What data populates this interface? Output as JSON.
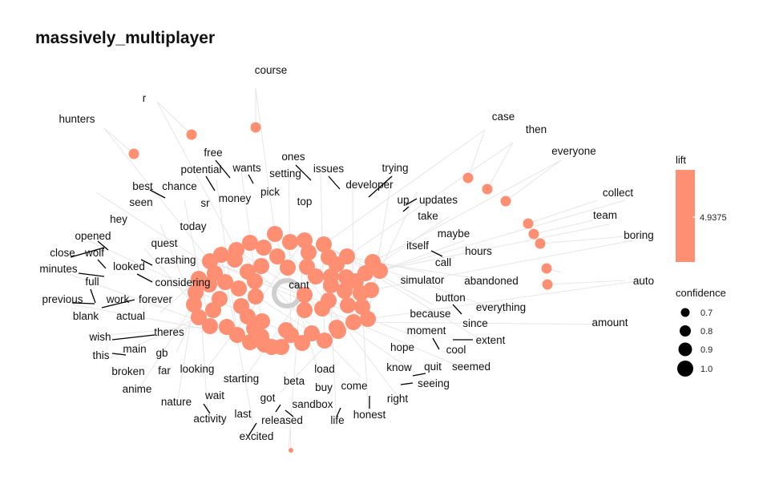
{
  "title": "massively_multiplayer",
  "colors": {
    "node": "#FF8F73",
    "edge": "#E6E6E6",
    "loop": "#CFCFCF"
  },
  "legend": {
    "lift_title": "lift",
    "lift_value": "4.9375",
    "confidence_title": "confidence",
    "confidence_values": [
      "0.7",
      "0.8",
      "0.9",
      "1.0"
    ]
  },
  "center_word": "cant",
  "words": [
    "course",
    "r",
    "hunters",
    "case",
    "then",
    "everyone",
    "free",
    "ones",
    "wants",
    "issues",
    "trying",
    "potential",
    "setting",
    "developer",
    "best",
    "chance",
    "money",
    "pick",
    "collect",
    "seen",
    "sr",
    "top",
    "up",
    "updates",
    "team",
    "hey",
    "take",
    "today",
    "boring",
    "opened",
    "maybe",
    "quest",
    "itself",
    "hours",
    "close",
    "wolf",
    "crashing",
    "call",
    "minutes",
    "looked",
    "simulator",
    "abandoned",
    "auto",
    "full",
    "considering",
    "button",
    "previous",
    "work",
    "forever",
    "everything",
    "blank",
    "actual",
    "because",
    "since",
    "amount",
    "moment",
    "wish",
    "theres",
    "extent",
    "main",
    "cool",
    "this",
    "gb",
    "hope",
    "know",
    "quit",
    "seemed",
    "broken",
    "far",
    "looking",
    "load",
    "starting",
    "beta",
    "come",
    "seeing",
    "anime",
    "right",
    "got",
    "buy",
    "wait",
    "sandbox",
    "nature",
    "honest",
    "last",
    "activity",
    "released",
    "life",
    "excited"
  ]
}
